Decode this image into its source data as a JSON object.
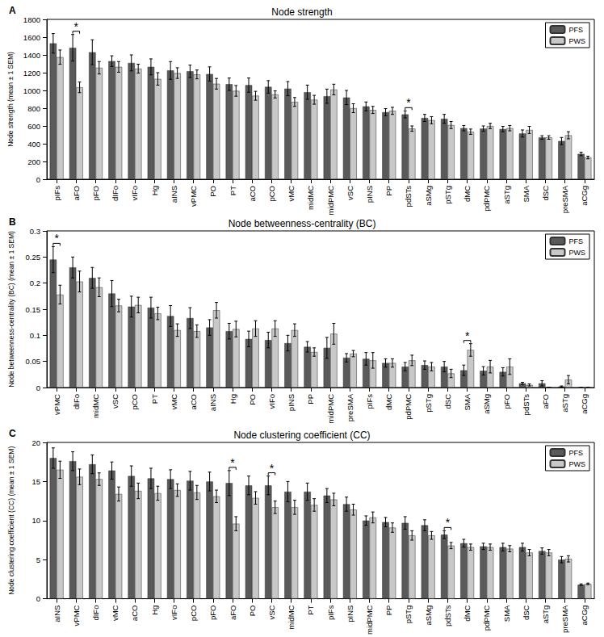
{
  "chart_data": [
    {
      "type": "bar",
      "panel": "A",
      "title": "Node strength",
      "y_label": "Node strength (mean ± 1 SEM)",
      "categories": [
        "pIFs",
        "aFO",
        "pFO",
        "dIFo",
        "vIFo",
        "Hg",
        "aINS",
        "vPMC",
        "PO",
        "PT",
        "aCO",
        "pCO",
        "vMC",
        "midMC",
        "midPMC",
        "vSC",
        "pINS",
        "PP",
        "pdSTs",
        "aSMg",
        "pSTg",
        "dMC",
        "pdPMC",
        "aSTg",
        "SMA",
        "dSC",
        "preSMA",
        "aCGg"
      ],
      "series": [
        {
          "name": "PFS",
          "color": "#5a5a5a",
          "values": [
            1530,
            1480,
            1430,
            1330,
            1310,
            1265,
            1225,
            1215,
            1185,
            1070,
            1060,
            1040,
            1020,
            980,
            935,
            920,
            820,
            755,
            730,
            690,
            680,
            575,
            570,
            565,
            515,
            470,
            430,
            285
          ],
          "errors": [
            110,
            150,
            140,
            60,
            90,
            90,
            100,
            70,
            80,
            70,
            80,
            70,
            80,
            80,
            80,
            80,
            50,
            40,
            40,
            40,
            50,
            30,
            30,
            30,
            40,
            20,
            40,
            20
          ]
        },
        {
          "name": "PWS",
          "color": "#c8c8c8",
          "values": [
            1375,
            1035,
            1255,
            1265,
            1245,
            1130,
            1195,
            1180,
            1075,
            995,
            940,
            955,
            870,
            895,
            1010,
            800,
            780,
            770,
            570,
            665,
            610,
            535,
            600,
            575,
            555,
            470,
            495,
            245
          ],
          "errors": [
            80,
            60,
            70,
            60,
            50,
            70,
            60,
            50,
            60,
            60,
            50,
            40,
            50,
            50,
            60,
            50,
            40,
            40,
            30,
            40,
            40,
            30,
            30,
            30,
            40,
            20,
            40,
            15
          ]
        }
      ],
      "ylim": [
        0,
        1800
      ],
      "yticks": [
        0,
        200,
        400,
        600,
        800,
        1000,
        1200,
        1400,
        1600,
        1800
      ],
      "grid": false,
      "legend": "top-right",
      "annotations": [
        {
          "category": "aFO",
          "text": "*"
        },
        {
          "category": "pdSTs",
          "text": "*"
        }
      ]
    },
    {
      "type": "bar",
      "panel": "B",
      "title": "Node betweenness-centrality (BC)",
      "y_label": "Node betweenness-centrality (BC) (mean ± 1 SEM)",
      "categories": [
        "vPMC",
        "dIFo",
        "midMC",
        "vSC",
        "pCO",
        "PT",
        "vMC",
        "aCO",
        "aINS",
        "Hg",
        "PO",
        "vIFo",
        "pINS",
        "PP",
        "midPMC",
        "preSMA",
        "pIFs",
        "dMC",
        "pdPMC",
        "pSTg",
        "dSC",
        "SMA",
        "aSMg",
        "pFO",
        "pdSTs",
        "aFO",
        "aSTg",
        "aCGg"
      ],
      "series": [
        {
          "name": "PFS",
          "color": "#5a5a5a",
          "values": [
            0.245,
            0.23,
            0.21,
            0.18,
            0.155,
            0.153,
            0.137,
            0.133,
            0.115,
            0.108,
            0.093,
            0.091,
            0.085,
            0.078,
            0.076,
            0.057,
            0.055,
            0.047,
            0.04,
            0.043,
            0.04,
            0.033,
            0.032,
            0.03,
            0.008,
            0.008,
            0.002,
            0
          ],
          "errors": [
            0.025,
            0.02,
            0.02,
            0.025,
            0.02,
            0.02,
            0.02,
            0.02,
            0.015,
            0.015,
            0.015,
            0.015,
            0.015,
            0.01,
            0.02,
            0.008,
            0.012,
            0.008,
            0.008,
            0.008,
            0.01,
            0.01,
            0.008,
            0.008,
            0.002,
            0.005,
            0.001,
            0
          ]
        },
        {
          "name": "PWS",
          "color": "#c8c8c8",
          "values": [
            0.178,
            0.203,
            0.192,
            0.157,
            0.158,
            0.142,
            0.11,
            0.108,
            0.148,
            0.112,
            0.113,
            0.113,
            0.11,
            0.068,
            0.103,
            0.065,
            0.052,
            0.047,
            0.052,
            0.04,
            0.027,
            0.072,
            0.04,
            0.04,
            0.005,
            0,
            0.015,
            0
          ],
          "errors": [
            0.018,
            0.02,
            0.018,
            0.012,
            0.015,
            0.012,
            0.012,
            0.012,
            0.015,
            0.015,
            0.015,
            0.015,
            0.012,
            0.008,
            0.02,
            0.006,
            0.015,
            0.008,
            0.01,
            0.008,
            0.008,
            0.012,
            0.012,
            0.015,
            0.002,
            0,
            0.008,
            0
          ]
        }
      ],
      "ylim": [
        0,
        0.3
      ],
      "yticks": [
        0,
        0.05,
        0.1,
        0.15,
        0.2,
        0.25,
        0.3
      ],
      "grid": false,
      "legend": "top-right",
      "annotations": [
        {
          "category": "vPMC",
          "text": "*"
        },
        {
          "category": "SMA",
          "text": "*"
        }
      ]
    },
    {
      "type": "bar",
      "panel": "C",
      "title": "Node clustering coefficient (CC)",
      "y_label": "Node clustering coefficient (CC) (mean ± 1 SEM)",
      "categories": [
        "aINS",
        "vPMC",
        "dIFo",
        "vMC",
        "aCO",
        "Hg",
        "vIFo",
        "pCO",
        "pFO",
        "aFO",
        "PO",
        "vSC",
        "midMC",
        "PT",
        "pIFs",
        "pINS",
        "midPMC",
        "PP",
        "pSTg",
        "aSMg",
        "pdSTs",
        "dMC",
        "pdPMC",
        "SMA",
        "dSC",
        "aSTg",
        "preSMA",
        "aCGg"
      ],
      "series": [
        {
          "name": "PFS",
          "color": "#5a5a5a",
          "values": [
            18,
            17.6,
            17.2,
            16.4,
            15.7,
            15.4,
            15.3,
            15.1,
            15,
            14.8,
            14.5,
            14.5,
            13.7,
            13.7,
            13.2,
            12.1,
            10,
            9.8,
            9.7,
            9.4,
            8.2,
            7.1,
            6.7,
            6.6,
            6.6,
            6.1,
            5,
            1.8
          ],
          "errors": [
            1.3,
            1.2,
            1.2,
            1.1,
            1.3,
            1.3,
            1.2,
            1.2,
            1.2,
            1.6,
            1.2,
            1.2,
            1.3,
            1.1,
            0.9,
            0.9,
            0.6,
            0.6,
            0.8,
            0.7,
            0.5,
            0.5,
            0.4,
            0.5,
            0.5,
            0.4,
            0.4,
            0.1
          ]
        },
        {
          "name": "PWS",
          "color": "#c8c8c8",
          "values": [
            16.5,
            15.6,
            15.3,
            13.4,
            13.8,
            13.5,
            13.9,
            13.6,
            13.1,
            9.6,
            12.9,
            11.7,
            11.7,
            12,
            12.7,
            11.4,
            10.4,
            9.1,
            8.1,
            8.1,
            6.8,
            6.6,
            6.6,
            6.4,
            5.9,
            5.9,
            5.1,
            1.9
          ],
          "errors": [
            1.1,
            1.0,
            0.8,
            0.9,
            1.0,
            0.9,
            0.8,
            0.9,
            0.8,
            0.9,
            0.8,
            0.8,
            0.9,
            0.8,
            0.8,
            0.7,
            0.7,
            0.6,
            0.6,
            0.5,
            0.4,
            0.4,
            0.4,
            0.4,
            0.4,
            0.4,
            0.4,
            0.1
          ]
        }
      ],
      "ylim": [
        0,
        20
      ],
      "yticks": [
        0,
        5,
        10,
        15,
        20
      ],
      "grid": false,
      "legend": "top-right",
      "annotations": [
        {
          "category": "aFO",
          "text": "*"
        },
        {
          "category": "vSC",
          "text": "*"
        },
        {
          "category": "pdSTs",
          "text": "*"
        }
      ]
    }
  ]
}
